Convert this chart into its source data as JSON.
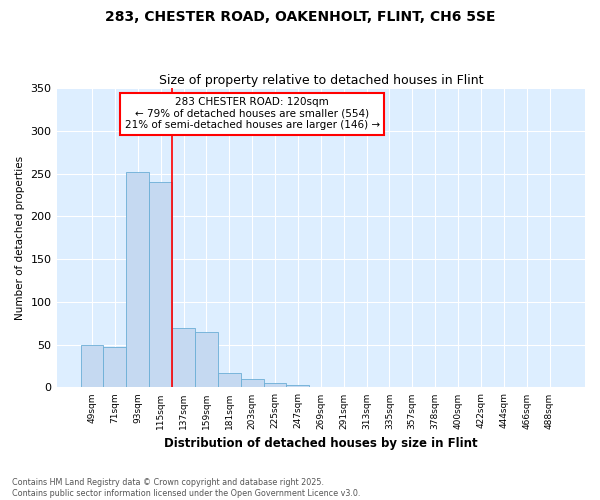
{
  "title1": "283, CHESTER ROAD, OAKENHOLT, FLINT, CH6 5SE",
  "title2": "Size of property relative to detached houses in Flint",
  "xlabel": "Distribution of detached houses by size in Flint",
  "ylabel": "Number of detached properties",
  "categories": [
    "49sqm",
    "71sqm",
    "93sqm",
    "115sqm",
    "137sqm",
    "159sqm",
    "181sqm",
    "203sqm",
    "225sqm",
    "247sqm",
    "269sqm",
    "291sqm",
    "313sqm",
    "335sqm",
    "357sqm",
    "378sqm",
    "400sqm",
    "422sqm",
    "444sqm",
    "466sqm",
    "488sqm"
  ],
  "values": [
    50,
    47,
    252,
    240,
    70,
    65,
    17,
    10,
    5,
    3,
    1,
    0,
    0,
    0,
    0,
    0,
    0,
    0,
    0,
    0,
    0
  ],
  "bar_color": "#c5d9f1",
  "bar_edge_color": "#6baed6",
  "bg_color": "#ddeeff",
  "fig_bg_color": "#ffffff",
  "grid_color": "#ffffff",
  "red_line_index": 3.5,
  "annotation_title": "283 CHESTER ROAD: 120sqm",
  "annotation_line1": "← 79% of detached houses are smaller (554)",
  "annotation_line2": "21% of semi-detached houses are larger (146) →",
  "footer1": "Contains HM Land Registry data © Crown copyright and database right 2025.",
  "footer2": "Contains public sector information licensed under the Open Government Licence v3.0.",
  "ylim": [
    0,
    350
  ],
  "yticks": [
    0,
    50,
    100,
    150,
    200,
    250,
    300,
    350
  ]
}
